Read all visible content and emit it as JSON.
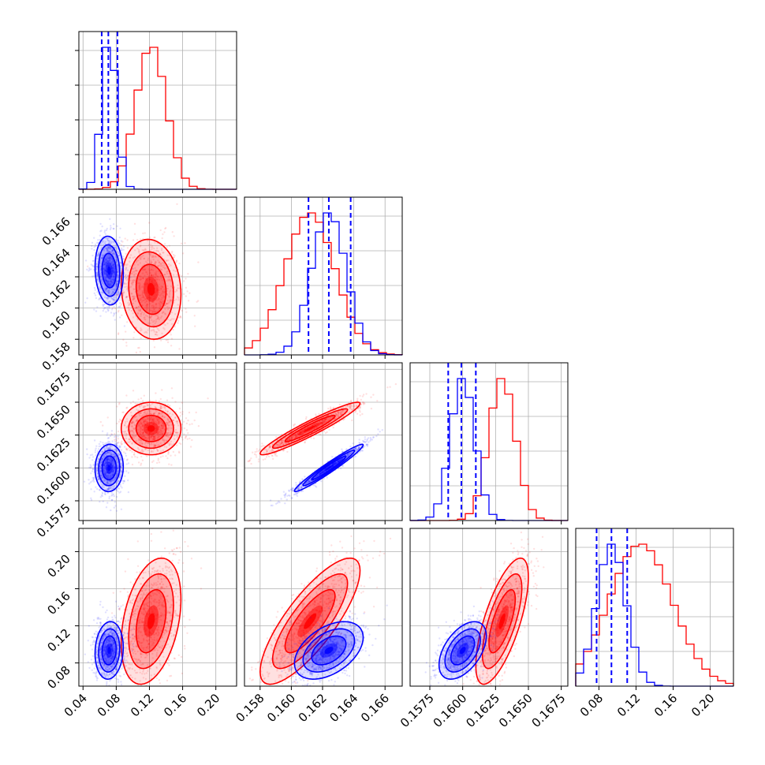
{
  "colors": {
    "series_a": "#ff0000",
    "series_b": "#0000ff",
    "grid": "#b0b0b0",
    "frame": "#000000"
  },
  "chart_data": {
    "type": "corner",
    "title": "",
    "grid": true,
    "parameters": [
      {
        "range": [
          0.035,
          0.225
        ],
        "ticks": [
          "0.04",
          "0.08",
          "0.12",
          "0.16",
          "0.20"
        ],
        "tick_values": [
          0.04,
          0.08,
          0.12,
          0.16,
          0.2
        ]
      },
      {
        "range": [
          0.157,
          0.1671
        ],
        "ticks": [
          "0.158",
          "0.160",
          "0.162",
          "0.164",
          "0.166"
        ],
        "tick_values": [
          0.158,
          0.16,
          0.162,
          0.164,
          0.166
        ]
      },
      {
        "range": [
          0.156,
          0.168
        ],
        "ticks": [
          "0.1575",
          "0.1600",
          "0.1625",
          "0.1650",
          "0.1675"
        ],
        "tick_values": [
          0.1575,
          0.16,
          0.1625,
          0.165,
          0.1675
        ]
      },
      {
        "range": [
          0.055,
          0.225
        ],
        "ticks": [
          "0.08",
          "0.12",
          "0.16",
          "0.20"
        ],
        "tick_values": [
          0.08,
          0.12,
          0.16,
          0.2
        ]
      }
    ],
    "series": [
      {
        "color": "series_a",
        "means": [
          0.122,
          0.1612,
          0.163,
          0.125
        ],
        "sigmas": [
          0.018,
          0.0016,
          0.001,
          0.034
        ],
        "correlations": {
          "1-0": -0.1,
          "2-0": 0.0,
          "2-1": 0.95,
          "3-0": 0.35,
          "3-1": 0.8,
          "3-2": 0.7
        }
      },
      {
        "color": "series_b",
        "means": [
          0.0715,
          0.1624,
          0.16,
          0.0935
        ],
        "sigmas": [
          0.0085,
          0.0011,
          0.0009,
          0.0155
        ],
        "correlations": {
          "1-0": -0.1,
          "2-0": 0.05,
          "2-1": 0.97,
          "3-0": 0.1,
          "3-1": 0.45,
          "3-2": 0.5
        }
      }
    ],
    "quantile_lines": {
      "color": "series_b",
      "values": [
        [
          0.0625,
          0.0705,
          0.0815
        ],
        [
          0.1611,
          0.1624,
          0.1638
        ],
        [
          0.1589,
          0.1599,
          0.161
        ],
        [
          0.0775,
          0.0935,
          0.1105
        ]
      ]
    },
    "contour_levels_sigma": [
      0.5,
      1.0,
      1.5,
      2.0
    ]
  }
}
